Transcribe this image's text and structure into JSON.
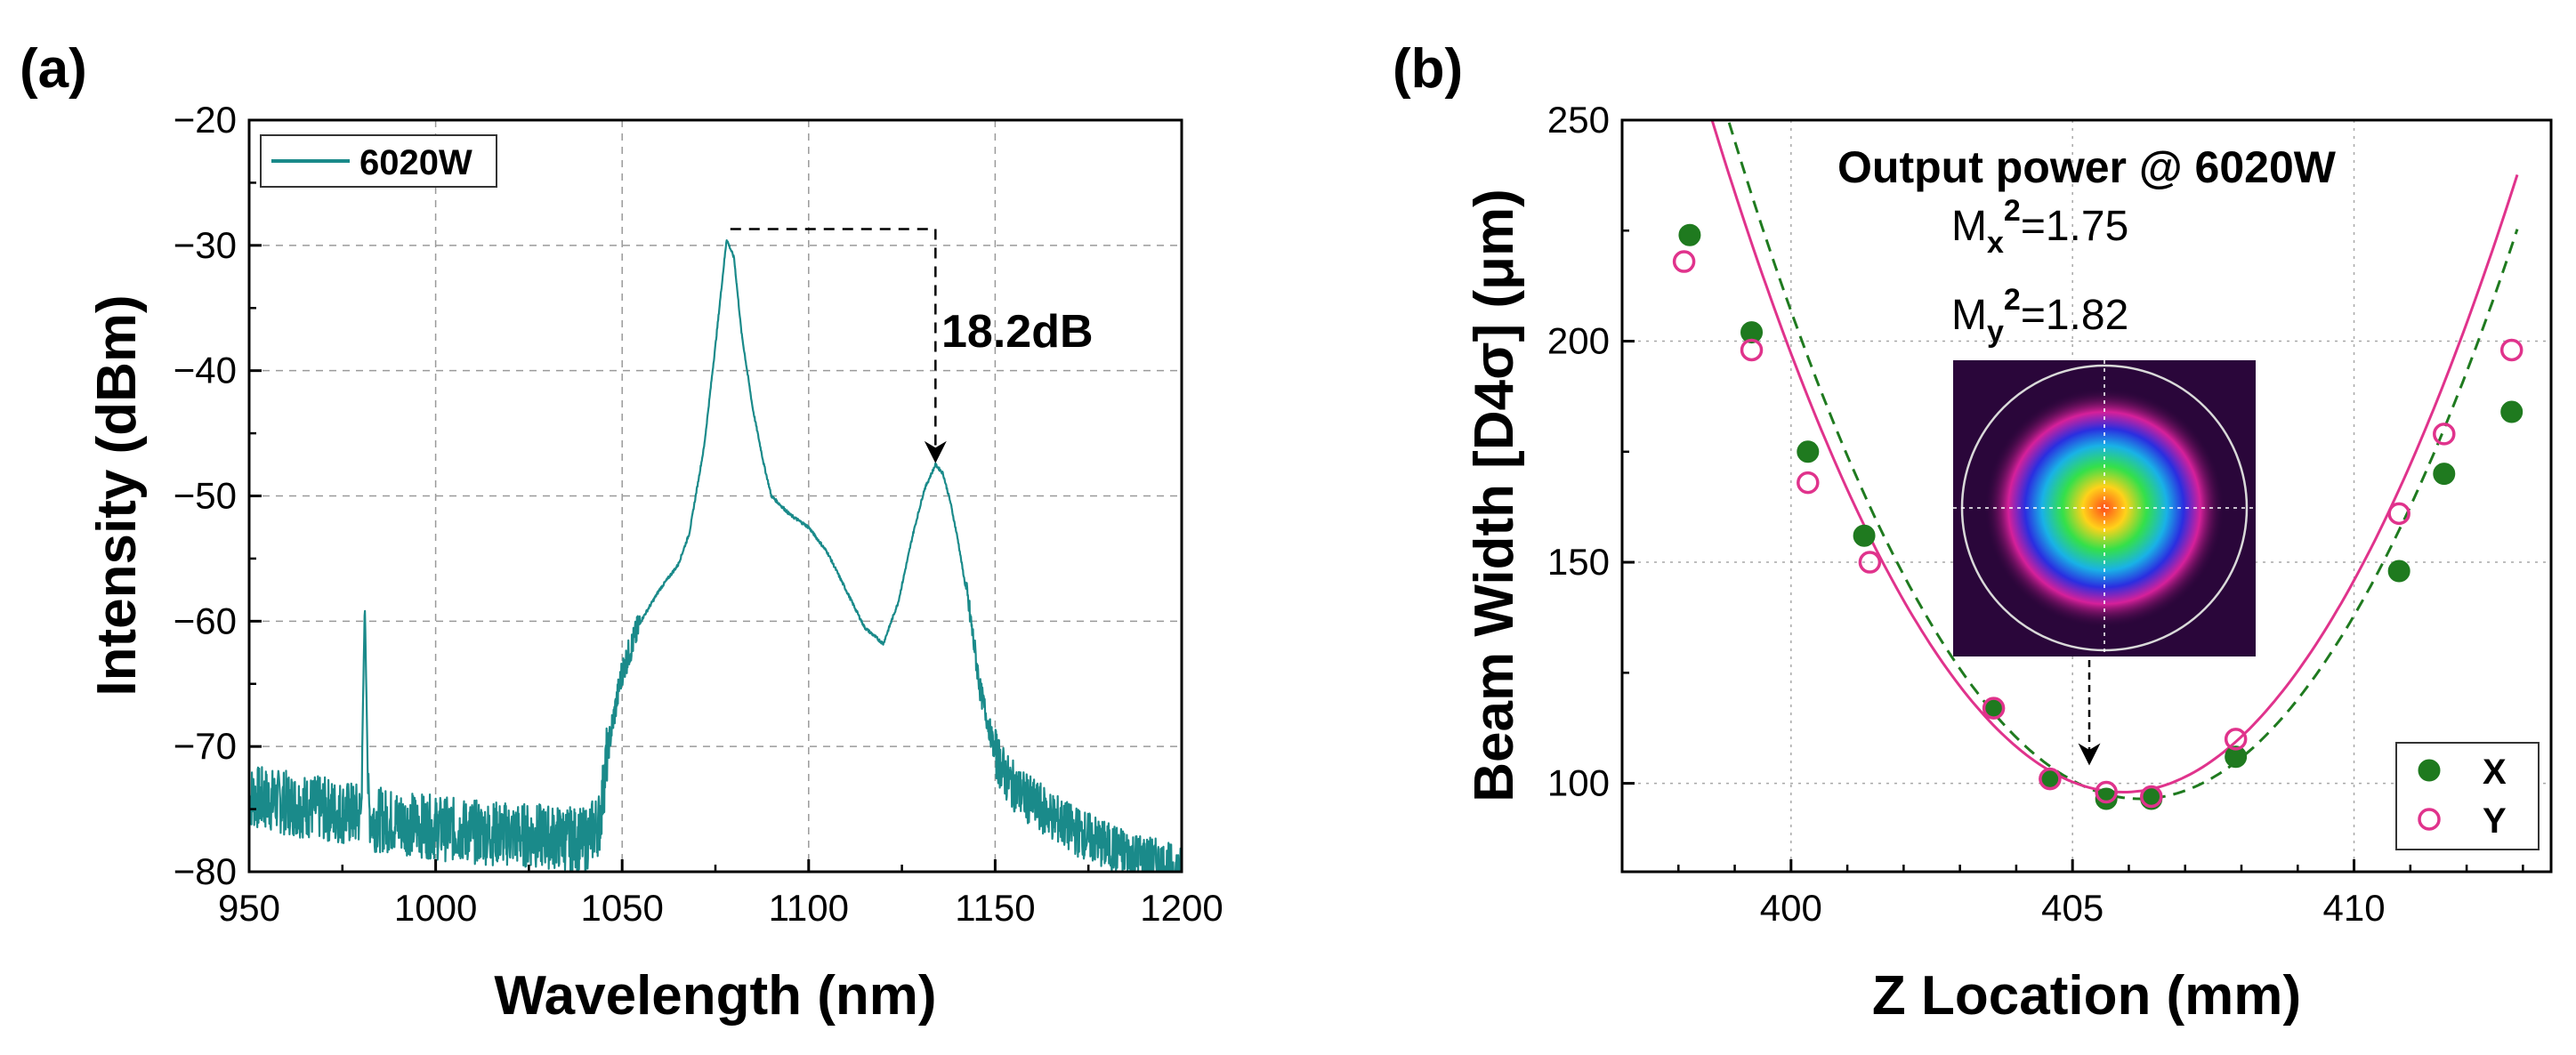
{
  "chart_data": [
    {
      "panel": "(a)",
      "type": "line",
      "xlabel": "Wavelength (nm)",
      "ylabel": "Intensity (dBm)",
      "xlim": [
        950,
        1200
      ],
      "ylim": [
        -80,
        -20
      ],
      "xticks": [
        950,
        1000,
        1050,
        1100,
        1150,
        1200
      ],
      "yticks": [
        -80,
        -70,
        -60,
        -50,
        -40,
        -30,
        -20
      ],
      "xtick_labels": [
        "950",
        "1000",
        "1050",
        "1100",
        "1150",
        "1200"
      ],
      "ytick_labels": [
        "−80",
        "−70",
        "−60",
        "−50",
        "−40",
        "−30",
        "−20"
      ],
      "grid": true,
      "legend_position": "top-left",
      "colors": {
        "series": "#1a8a8a"
      },
      "series": [
        {
          "name": "6020W",
          "x": [
            950,
            960,
            970,
            980,
            981,
            982,
            983,
            990,
            1000,
            1010,
            1020,
            1030,
            1040,
            1044,
            1046,
            1050,
            1055,
            1060,
            1065,
            1068,
            1072,
            1075,
            1078,
            1080,
            1082,
            1085,
            1088,
            1090,
            1095,
            1100,
            1105,
            1110,
            1115,
            1120,
            1124,
            1128,
            1131,
            1134,
            1136,
            1138,
            1140,
            1143,
            1146,
            1150,
            1153,
            1156,
            1160,
            1165,
            1170,
            1175,
            1180,
            1185,
            1190,
            1195,
            1200
          ],
          "y": [
            -74,
            -74.5,
            -75,
            -75.5,
            -58.5,
            -75,
            -75.8,
            -76,
            -76.5,
            -76.8,
            -77,
            -77.2,
            -77.5,
            -76,
            -70.5,
            -64,
            -60,
            -57.5,
            -55.5,
            -53,
            -46,
            -38,
            -29.5,
            -31,
            -37,
            -43,
            -47.5,
            -50,
            -51.5,
            -52.5,
            -54.5,
            -57.5,
            -60.5,
            -61.8,
            -58.5,
            -53,
            -49.5,
            -47.5,
            -48.2,
            -50.5,
            -53.5,
            -59,
            -65.5,
            -70.5,
            -72.5,
            -73.5,
            -74.5,
            -75.5,
            -76.5,
            -77.2,
            -78,
            -78.5,
            -79,
            -79.5,
            -80
          ]
        }
      ],
      "annotation": {
        "text": "18.2dB",
        "peak_x": 1079,
        "peak_y": -28.7,
        "target_x": 1134,
        "target_y": -47.5
      }
    },
    {
      "panel": "(b)",
      "type": "scatter",
      "title": "Output power @ 6020W",
      "xlabel": "Z Location (mm)",
      "ylabel": "Beam Width [D4σ] (μm)",
      "xlim": [
        397,
        413.5
      ],
      "ylim": [
        80,
        250
      ],
      "xticks": [
        400,
        405,
        410
      ],
      "yticks": [
        100,
        150,
        200,
        250
      ],
      "xtick_labels": [
        "400",
        "405",
        "410"
      ],
      "ytick_labels": [
        "100",
        "150",
        "200",
        "250"
      ],
      "grid": true,
      "legend_position": "bottom-right",
      "colors": {
        "x": "#1f7a1f",
        "y": "#e0338c"
      },
      "m2": {
        "mx_prefix": "M",
        "mx_sub": "x",
        "mx_value": "=1.75",
        "my_prefix": "M",
        "my_sub": "y",
        "my_value": "=1.82",
        "exp": "2"
      },
      "series": [
        {
          "name": "X",
          "marker": "filled-circle",
          "x": [
            398.2,
            399.3,
            400.3,
            401.3,
            403.6,
            404.6,
            405.6,
            406.4,
            407.9,
            410.8,
            411.6,
            412.8
          ],
          "y": [
            224,
            202,
            175,
            156,
            117,
            101,
            96.5,
            96.5,
            106,
            148,
            170,
            184
          ],
          "fit": {
            "style": "dashed",
            "vertex_x": 406.2,
            "vertex_y": 96.5,
            "a": 2.87
          }
        },
        {
          "name": "Y",
          "marker": "open-circle",
          "x": [
            398.1,
            399.3,
            400.3,
            401.4,
            403.6,
            404.6,
            405.6,
            406.4,
            407.9,
            410.8,
            411.6,
            412.8
          ],
          "y": [
            218,
            198,
            168,
            150,
            117,
            101,
            98,
            97,
            110,
            161,
            179,
            198
          ],
          "fit": {
            "style": "solid",
            "vertex_x": 405.9,
            "vertex_y": 98,
            "a": 2.85
          }
        }
      ]
    }
  ]
}
